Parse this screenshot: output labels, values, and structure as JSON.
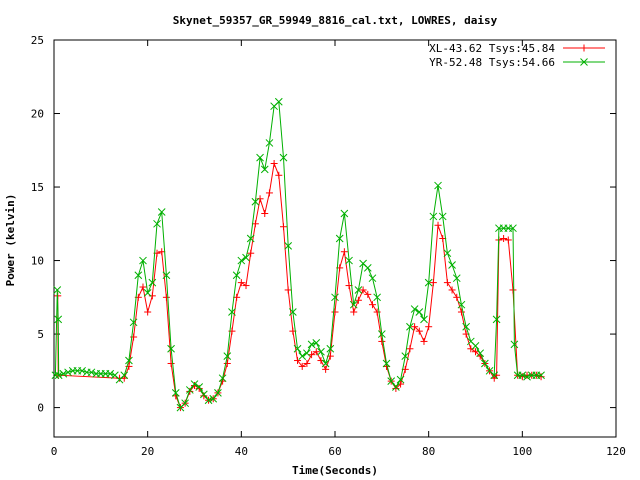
{
  "chart_data": {
    "type": "line",
    "title": "Skynet_59357_GR_59949_8816_cal.txt, LOWRES, daisy",
    "xlabel": "Time(Seconds)",
    "ylabel": "Power (kelvin)",
    "xlim": [
      0,
      120
    ],
    "ylim": [
      -2,
      25
    ],
    "xticks": [
      0,
      20,
      40,
      60,
      80,
      100,
      120
    ],
    "yticks": [
      0,
      5,
      10,
      15,
      20,
      25
    ],
    "grid": false,
    "legend_position": "top-right",
    "series": [
      {
        "name": "XL-43.62 Tsys:45.84",
        "color": "#ff0000",
        "marker": "plus",
        "x": [
          0.8,
          0.9,
          14,
          15,
          16,
          17,
          18,
          19,
          20,
          21,
          22,
          23,
          24,
          25,
          26,
          27,
          28,
          29,
          30,
          31,
          32,
          33,
          34,
          35,
          36,
          37,
          38,
          39,
          40,
          41,
          42,
          43,
          44,
          45,
          46,
          47,
          48,
          49,
          50,
          51,
          52,
          53,
          54,
          55,
          56,
          57,
          58,
          59,
          60,
          61,
          62,
          63,
          64,
          65,
          66,
          67,
          68,
          69,
          70,
          71,
          72,
          73,
          74,
          75,
          76,
          77,
          78,
          79,
          80,
          81,
          82,
          83,
          84,
          85,
          86,
          87,
          88,
          89,
          90,
          91,
          92,
          93,
          94,
          94.5,
          95,
          96,
          97,
          98,
          99,
          100,
          101,
          102,
          103,
          104
        ],
        "y": [
          7.6,
          2.2,
          2.0,
          2.0,
          2.8,
          4.8,
          7.5,
          8.2,
          6.5,
          7.6,
          10.5,
          10.6,
          7.5,
          3.0,
          0.8,
          0.0,
          0.3,
          1.1,
          1.5,
          1.3,
          0.8,
          0.5,
          0.6,
          1.0,
          1.8,
          3.0,
          5.2,
          7.5,
          8.5,
          8.3,
          10.5,
          12.5,
          14.2,
          13.2,
          14.6,
          16.6,
          15.8,
          12.3,
          8.0,
          5.2,
          3.2,
          2.8,
          3.0,
          3.6,
          3.8,
          3.2,
          2.6,
          3.5,
          6.5,
          9.5,
          10.6,
          8.3,
          6.5,
          7.3,
          8.0,
          7.7,
          7.0,
          6.5,
          4.5,
          2.8,
          1.8,
          1.3,
          1.6,
          2.6,
          4.0,
          5.5,
          5.2,
          4.5,
          5.5,
          8.5,
          12.4,
          11.5,
          8.5,
          8.0,
          7.5,
          6.5,
          5.0,
          4.0,
          3.8,
          3.5,
          3.0,
          2.5,
          2.0,
          2.2,
          11.4,
          11.5,
          11.4,
          8.0,
          2.2,
          2.1,
          2.2,
          2.2,
          2.2,
          2.1
        ]
      },
      {
        "name": "YR-52.48 Tsys:54.66",
        "color": "#00b000",
        "marker": "cross",
        "x": [
          0.3,
          0.7,
          0.9,
          1.0,
          2,
          3,
          4,
          5,
          6,
          7,
          8,
          9,
          10,
          11,
          12,
          13,
          14,
          15,
          16,
          17,
          18,
          19,
          20,
          21,
          22,
          23,
          24,
          25,
          26,
          27,
          28,
          29,
          30,
          31,
          32,
          33,
          34,
          35,
          36,
          37,
          38,
          39,
          40,
          41,
          42,
          43,
          44,
          45,
          46,
          47,
          48,
          49,
          50,
          51,
          52,
          53,
          54,
          55,
          56,
          57,
          58,
          59,
          60,
          61,
          62,
          63,
          64,
          65,
          66,
          67,
          68,
          69,
          70,
          71,
          72,
          73,
          74,
          75,
          76,
          77,
          78,
          79,
          80,
          81,
          82,
          83,
          84,
          85,
          86,
          87,
          88,
          89,
          90,
          91,
          92,
          93,
          94,
          94.5,
          95,
          96,
          97,
          98,
          98.3,
          99,
          100,
          101,
          102,
          103,
          104
        ],
        "y": [
          2.2,
          8.0,
          6.0,
          2.2,
          2.3,
          2.4,
          2.5,
          2.5,
          2.5,
          2.4,
          2.4,
          2.3,
          2.3,
          2.3,
          2.3,
          2.2,
          1.9,
          2.2,
          3.2,
          5.8,
          9.0,
          10.0,
          7.8,
          8.5,
          12.5,
          13.3,
          9.0,
          4.0,
          1.0,
          0.0,
          0.3,
          1.2,
          1.6,
          1.4,
          0.9,
          0.5,
          0.6,
          1.0,
          2.0,
          3.5,
          6.5,
          9.0,
          10.0,
          10.2,
          11.5,
          14.0,
          17.0,
          16.2,
          18.0,
          20.5,
          20.8,
          17.0,
          11.0,
          6.5,
          4.0,
          3.5,
          3.7,
          4.3,
          4.4,
          3.8,
          3.0,
          4.0,
          7.5,
          11.5,
          13.2,
          10.0,
          7.0,
          8.0,
          9.8,
          9.5,
          8.8,
          7.5,
          5.0,
          3.0,
          1.8,
          1.4,
          1.9,
          3.5,
          5.5,
          6.7,
          6.5,
          6.0,
          8.5,
          13.0,
          15.1,
          13.0,
          10.5,
          9.7,
          8.8,
          7.0,
          5.5,
          4.5,
          4.2,
          3.7,
          3.0,
          2.5,
          2.2,
          6.0,
          12.2,
          12.2,
          12.2,
          12.2,
          4.3,
          2.2,
          2.2,
          2.1,
          2.2,
          2.2,
          2.2
        ]
      }
    ]
  }
}
